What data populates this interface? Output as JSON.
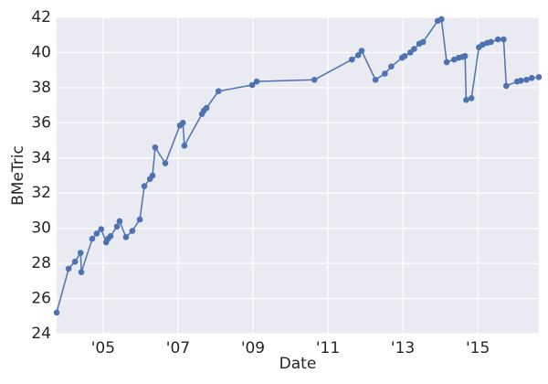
{
  "chart_data": {
    "type": "line",
    "x_label": "Date",
    "y_label": "BMeTric",
    "x": [
      2003.76,
      2004.08,
      2004.25,
      2004.4,
      2004.42,
      2004.71,
      2004.83,
      2004.95,
      2005.08,
      2005.13,
      2005.2,
      2005.37,
      2005.44,
      2005.61,
      2005.78,
      2005.98,
      2006.1,
      2006.25,
      2006.32,
      2006.39,
      2006.66,
      2007.05,
      2007.13,
      2007.17,
      2007.64,
      2007.69,
      2007.76,
      2008.08,
      2008.98,
      2009.1,
      2010.64,
      2011.64,
      2011.81,
      2011.9,
      2012.27,
      2012.52,
      2012.69,
      2012.98,
      2013.05,
      2013.2,
      2013.3,
      2013.44,
      2013.54,
      2013.93,
      2014.03,
      2014.17,
      2014.37,
      2014.49,
      2014.59,
      2014.66,
      2014.69,
      2014.83,
      2015.03,
      2015.13,
      2015.25,
      2015.35,
      2015.54,
      2015.69,
      2015.76,
      2016.05,
      2016.15,
      2016.3,
      2016.44,
      2016.63
    ],
    "y": [
      25.2,
      27.7,
      28.1,
      28.6,
      27.5,
      29.4,
      29.7,
      29.95,
      29.2,
      29.4,
      29.55,
      30.1,
      30.4,
      29.5,
      29.85,
      30.5,
      32.4,
      32.8,
      33.0,
      34.6,
      33.7,
      35.85,
      36.0,
      34.7,
      36.5,
      36.7,
      36.85,
      37.8,
      38.15,
      38.35,
      38.45,
      39.6,
      39.85,
      40.1,
      38.45,
      38.8,
      39.2,
      39.7,
      39.8,
      40.0,
      40.2,
      40.5,
      40.6,
      41.8,
      41.9,
      39.45,
      39.6,
      39.7,
      39.75,
      39.8,
      37.3,
      37.4,
      40.3,
      40.45,
      40.55,
      40.6,
      40.75,
      40.75,
      38.1,
      38.35,
      38.4,
      38.45,
      38.55,
      38.6
    ],
    "color": "#4c72b0",
    "xlim": [
      2003.76,
      2016.63
    ],
    "xticks": [
      {
        "value": 2005,
        "label": "'05"
      },
      {
        "value": 2007,
        "label": "'07"
      },
      {
        "value": 2009,
        "label": "'09"
      },
      {
        "value": 2011,
        "label": "'11"
      },
      {
        "value": 2013,
        "label": "'13"
      },
      {
        "value": 2015,
        "label": "'15"
      }
    ],
    "ylim": [
      24,
      42
    ],
    "yticks": [
      24,
      26,
      28,
      30,
      32,
      34,
      36,
      38,
      40,
      42
    ],
    "grid": true
  }
}
